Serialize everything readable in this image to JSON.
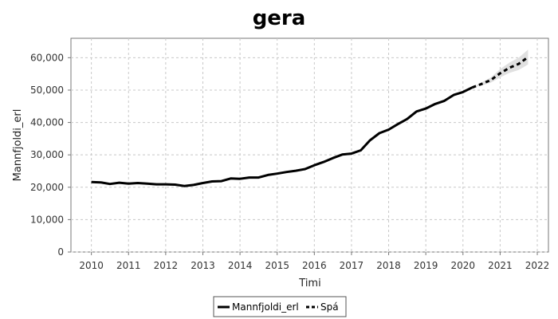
{
  "chart_data": {
    "type": "line",
    "title": "gera",
    "xlabel": "Timi",
    "ylabel": "Mannfjoldi_erl",
    "xlim": [
      2009.45,
      2022.3
    ],
    "ylim": [
      0,
      66000
    ],
    "x_ticks": [
      2010,
      2011,
      2012,
      2013,
      2014,
      2015,
      2016,
      2017,
      2018,
      2019,
      2020,
      2021,
      2022
    ],
    "y_ticks": [
      0,
      10000,
      20000,
      30000,
      40000,
      50000,
      60000
    ],
    "y_tick_labels": [
      "0",
      "10,000",
      "20,000",
      "30,000",
      "40,000",
      "50,000",
      "60,000"
    ],
    "x_tick_labels": [
      "2010",
      "2011",
      "2012",
      "2013",
      "2014",
      "2015",
      "2016",
      "2017",
      "2018",
      "2019",
      "2020",
      "2021",
      "2022"
    ],
    "grid": true,
    "legend_position": "bottom",
    "series": [
      {
        "name": "Mannfjoldi_erl",
        "style": "solid",
        "color": "#000000",
        "x": [
          2010.0,
          2010.25,
          2010.5,
          2010.75,
          2011.0,
          2011.25,
          2011.5,
          2011.75,
          2012.0,
          2012.25,
          2012.5,
          2012.75,
          2013.0,
          2013.25,
          2013.5,
          2013.75,
          2014.0,
          2014.25,
          2014.5,
          2014.75,
          2015.0,
          2015.25,
          2015.5,
          2015.75,
          2016.0,
          2016.25,
          2016.5,
          2016.75,
          2017.0,
          2017.25,
          2017.5,
          2017.75,
          2018.0,
          2018.25,
          2018.5,
          2018.75,
          2019.0,
          2019.25,
          2019.5,
          2019.75,
          2020.0,
          2020.25
        ],
        "values": [
          21600,
          21500,
          21000,
          21400,
          21100,
          21300,
          21100,
          20900,
          20900,
          20800,
          20400,
          20700,
          21300,
          21800,
          21900,
          22700,
          22600,
          23000,
          23000,
          23800,
          24200,
          24700,
          25100,
          25600,
          26800,
          27800,
          29000,
          30100,
          30400,
          31400,
          34500,
          36700,
          37800,
          39500,
          41100,
          43400,
          44300,
          45700,
          46700,
          48500,
          49400,
          50800
        ]
      },
      {
        "name": "Spá",
        "style": "dashed",
        "color": "#000000",
        "x": [
          2020.25,
          2020.5,
          2020.75,
          2021.0,
          2021.25,
          2021.5,
          2021.75
        ],
        "values": [
          50800,
          51900,
          53100,
          55200,
          56900,
          58100,
          60200
        ],
        "lower": [
          50800,
          51400,
          52300,
          53900,
          55300,
          56200,
          57900
        ],
        "upper": [
          50800,
          52400,
          53900,
          56500,
          58500,
          60000,
          62500
        ],
        "band_color": "#e0e0e0"
      }
    ]
  }
}
